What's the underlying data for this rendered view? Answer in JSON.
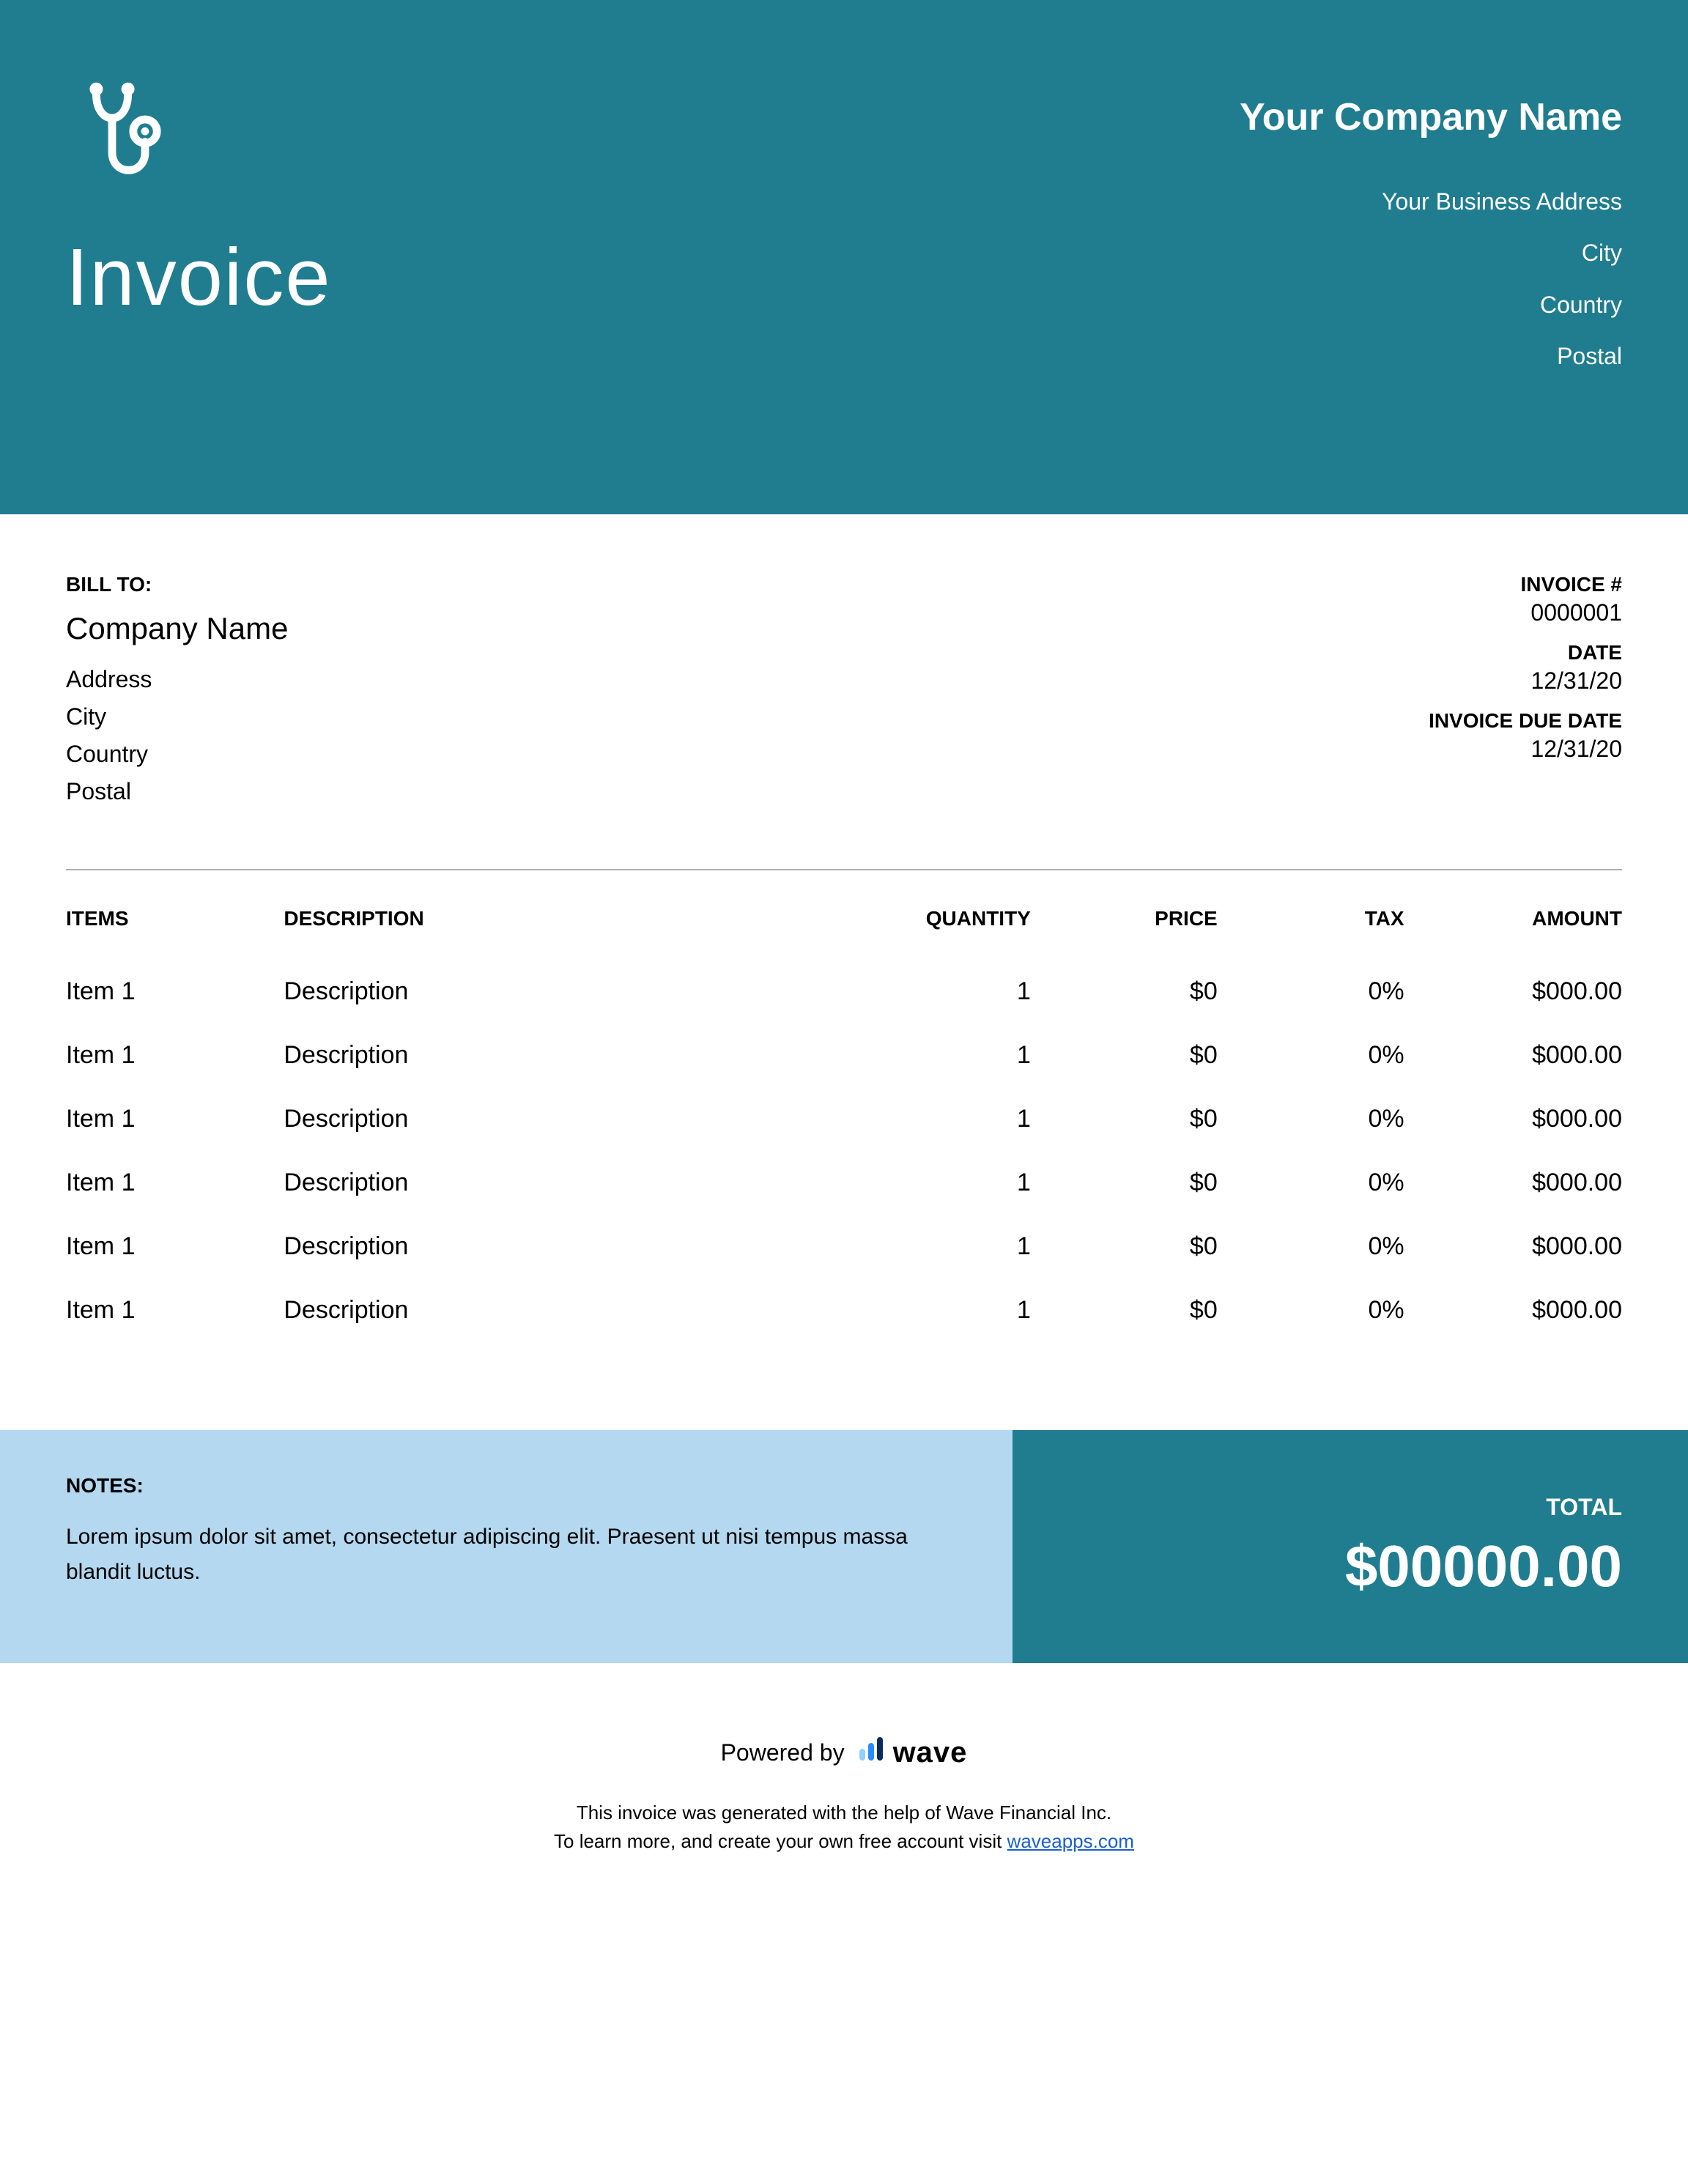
{
  "colors": {
    "primary": "#1f7d8f",
    "notes_bg": "#b3d8ef",
    "text": "#000000",
    "white": "#ffffff",
    "divider": "#b0b0b0",
    "link": "#1a5fd0",
    "wave_blue": "#2a8cff"
  },
  "header": {
    "title": "Invoice",
    "company_name": "Your Company Name",
    "address_lines": [
      "Your Business Address",
      "City",
      "Country",
      "Postal"
    ]
  },
  "bill_to": {
    "label": "BILL TO:",
    "company": "Company Name",
    "lines": [
      "Address",
      "City",
      "Country",
      "Postal"
    ]
  },
  "invoice_meta": {
    "number_label": "INVOICE #",
    "number": "0000001",
    "date_label": "DATE",
    "date": "12/31/20",
    "due_label": "INVOICE DUE DATE",
    "due": "12/31/20"
  },
  "table": {
    "headers": {
      "items": "ITEMS",
      "description": "DESCRIPTION",
      "quantity": "QUANTITY",
      "price": "PRICE",
      "tax": "TAX",
      "amount": "AMOUNT"
    },
    "rows": [
      {
        "item": "Item 1",
        "description": "Description",
        "quantity": "1",
        "price": "$0",
        "tax": "0%",
        "amount": "$000.00"
      },
      {
        "item": "Item 1",
        "description": "Description",
        "quantity": "1",
        "price": "$0",
        "tax": "0%",
        "amount": "$000.00"
      },
      {
        "item": "Item 1",
        "description": "Description",
        "quantity": "1",
        "price": "$0",
        "tax": "0%",
        "amount": "$000.00"
      },
      {
        "item": "Item 1",
        "description": "Description",
        "quantity": "1",
        "price": "$0",
        "tax": "0%",
        "amount": "$000.00"
      },
      {
        "item": "Item 1",
        "description": "Description",
        "quantity": "1",
        "price": "$0",
        "tax": "0%",
        "amount": "$000.00"
      },
      {
        "item": "Item 1",
        "description": "Description",
        "quantity": "1",
        "price": "$0",
        "tax": "0%",
        "amount": "$000.00"
      }
    ]
  },
  "notes": {
    "label": "NOTES:",
    "text": "Lorem ipsum dolor sit amet, consectetur adipiscing elit. Praesent ut nisi tempus massa blandit luctus."
  },
  "total": {
    "label": "TOTAL",
    "amount": "$00000.00"
  },
  "footer": {
    "powered_by": "Powered by",
    "wave": "wave",
    "line1": "This invoice was generated with the help of Wave Financial Inc.",
    "line2_pre": "To learn more, and create your own free account visit ",
    "link_text": "waveapps.com"
  }
}
